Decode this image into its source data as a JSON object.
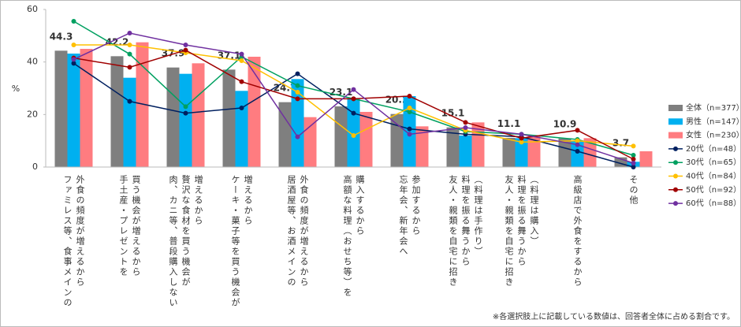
{
  "chart_data": {
    "type": "bar",
    "y_label": "%",
    "categories": [
      "ファミレス等、食事メインの\n外食の頻度が増えるから",
      "手土産・プレゼントを\n買う機会が増えるから",
      "肉、カニ等、普段購入しない\n贅沢な食材を買う機会が\n増えるから",
      "ケーキ・菓子等を買う機会が\n増えるから",
      "居酒屋等、お酒メインの\n外食の頻度が増えるから",
      "高額な料理（おせち等）を\n購入するから",
      "忘年会、新年会へ\n参加するから",
      "友人・親類を自宅に招き\n料理を振る舞うから\n（料理は手作り）",
      "友人・親類を自宅に招き\n料理を振る舞うから\n（料理は購入）",
      "高級店で外食をするから",
      "その他"
    ],
    "series": [
      {
        "name": "全体（n=377）",
        "type": "bar",
        "color": "#7f7f7f",
        "data_labels": true,
        "values": [
          44.3,
          42.2,
          37.9,
          37.1,
          24.7,
          23.1,
          20.2,
          15.1,
          11.1,
          10.9,
          3.7
        ]
      },
      {
        "name": "男性（n=147）",
        "type": "bar",
        "color": "#00b0f0",
        "values": [
          43.2,
          34,
          35.5,
          29,
          33.5,
          26,
          27,
          12,
          11,
          10,
          2
        ]
      },
      {
        "name": "女性（n=230）",
        "type": "bar",
        "color": "#ff7c80",
        "values": [
          45,
          47.5,
          39.5,
          42,
          19,
          21,
          15.5,
          17,
          12,
          11,
          6
        ]
      },
      {
        "name": "20代（n=48）",
        "type": "line",
        "color": "#002060",
        "values": [
          39.5,
          25,
          20.5,
          22.5,
          35.5,
          20.5,
          14.5,
          12.5,
          11.5,
          6,
          0
        ]
      },
      {
        "name": "30代（n=65）",
        "type": "line",
        "color": "#00a060",
        "values": [
          55.5,
          43,
          23,
          42,
          31,
          26,
          21,
          13.5,
          12.5,
          10.5,
          4.5
        ]
      },
      {
        "name": "40代（n=84）",
        "type": "line",
        "color": "#ffc000",
        "values": [
          46.5,
          46.5,
          43.5,
          40.5,
          28.5,
          12,
          22.5,
          14,
          9.5,
          10,
          8
        ]
      },
      {
        "name": "50代（n=92）",
        "type": "line",
        "color": "#a00000",
        "values": [
          41.5,
          38,
          44.5,
          32.5,
          26,
          26,
          27,
          17,
          11,
          14,
          3
        ]
      },
      {
        "name": "60代（n=88）",
        "type": "line",
        "color": "#7030a0",
        "values": [
          41,
          51,
          46.5,
          43,
          11.5,
          29.5,
          12.5,
          15,
          12.5,
          8.5,
          1.5
        ]
      }
    ],
    "ylim": [
      0,
      60
    ],
    "yticks": [
      0,
      20,
      40,
      60
    ],
    "grid": false,
    "legend": "right",
    "footnote": "※各選択肢上に記載している数値は、回答者全体に占める割合です。"
  }
}
